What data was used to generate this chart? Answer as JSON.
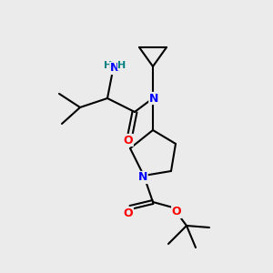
{
  "background_color": "#ebebeb",
  "atom_colors": {
    "N": "#0000ff",
    "O": "#ff0000",
    "H": "#008080",
    "C": "#000000"
  },
  "bond_color": "#000000",
  "bond_width": 1.5,
  "figsize": [
    3.0,
    3.0
  ],
  "dpi": 100
}
